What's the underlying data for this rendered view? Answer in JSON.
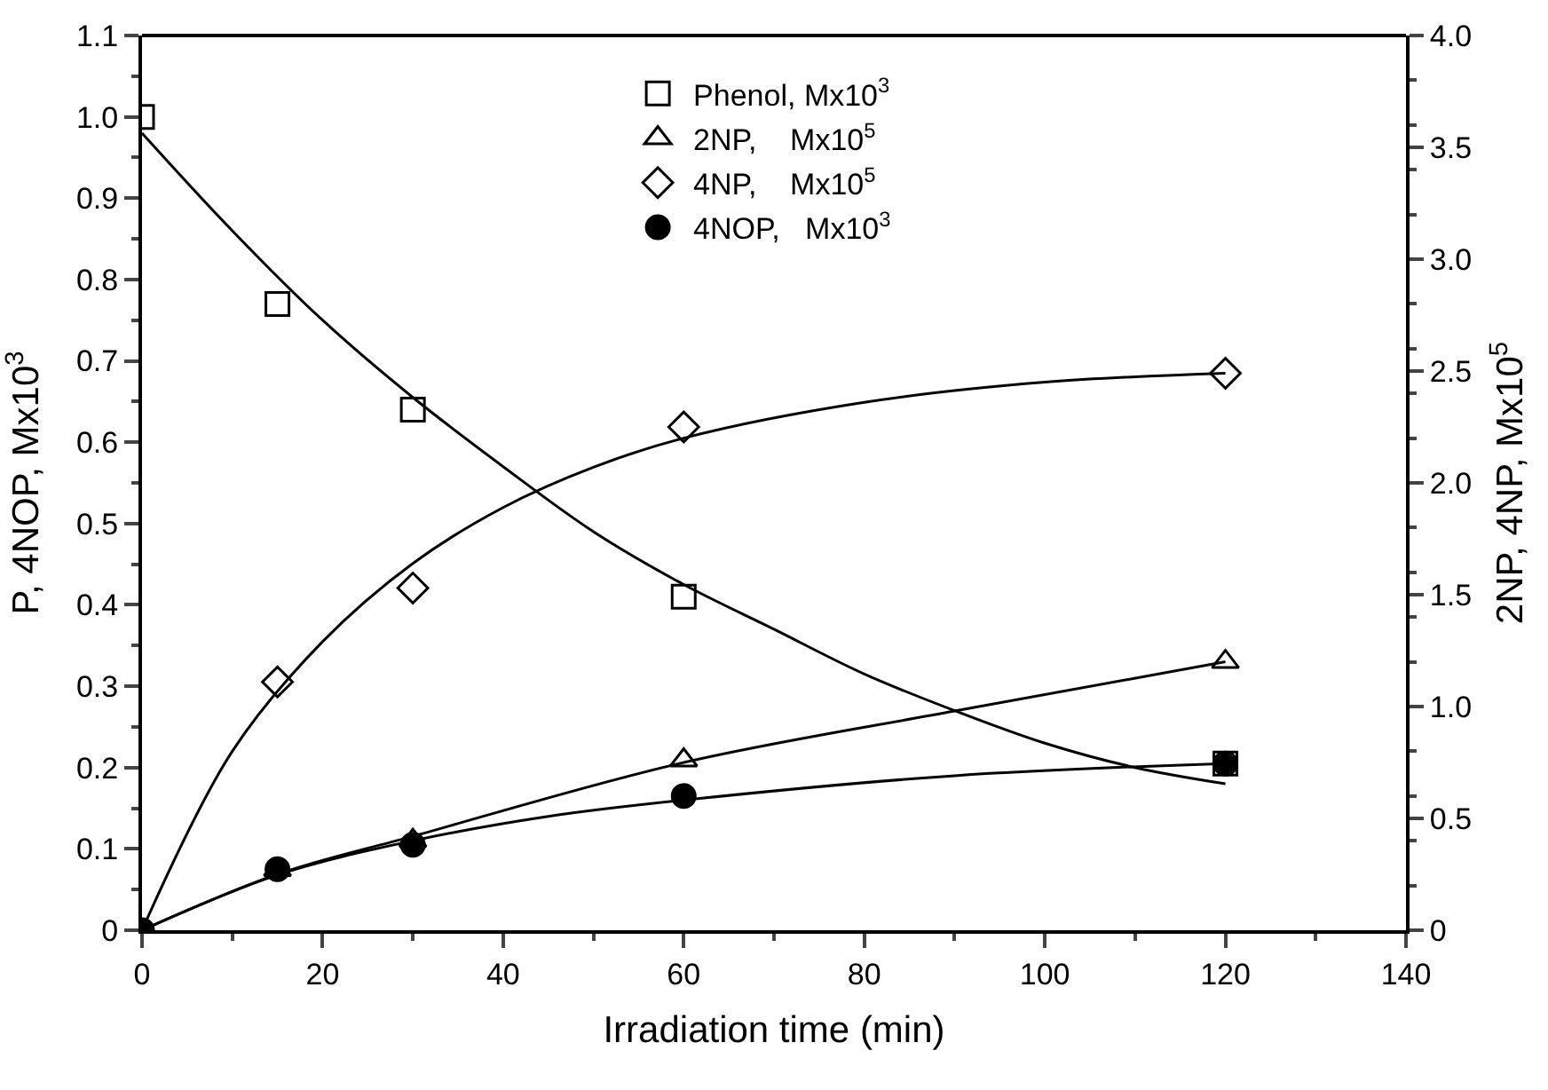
{
  "chart_data": {
    "type": "scatter",
    "xlabel": "Irradiation time (min)",
    "ylabel": "P, 4NOP, Mx10$^{3}$",
    "y2label": "2NP, 4NP, Mx10$^{5}$",
    "xlim": [
      0,
      140
    ],
    "xticks": [
      0,
      20,
      40,
      60,
      80,
      100,
      120,
      140
    ],
    "ylim": [
      0,
      1.1
    ],
    "yticks": [
      {
        "value": 0,
        "label": "0"
      },
      0.1,
      0.2,
      0.3,
      0.4,
      0.5,
      0.6,
      0.7,
      0.8,
      0.9,
      {
        "value": 1.0,
        "label": "1.0"
      },
      1.1
    ],
    "y2lim": [
      0,
      4.0
    ],
    "y2ticks": [
      {
        "value": 0,
        "label": "0"
      },
      0.5,
      {
        "value": 1.0,
        "label": "1.0"
      },
      1.5,
      {
        "value": 2.0,
        "label": "2.0"
      },
      2.5,
      {
        "value": 3.0,
        "label": "3.0"
      },
      3.5,
      {
        "value": 4.0,
        "label": "4.0"
      }
    ],
    "legend": "top",
    "series": [
      {
        "name": "Phenol, Mx10$^{3}$",
        "marker": "square",
        "color": "#000000",
        "x": [
          0,
          15,
          30,
          60,
          120
        ],
        "values": [
          1.0,
          0.77,
          0.64,
          0.41,
          0.205
        ]
      },
      {
        "name": "2NP,    Mx10$^{5}$",
        "marker": "triangle",
        "axis": "y2",
        "color": "#000000",
        "x": [
          15,
          30,
          60,
          120
        ],
        "values": [
          0.27,
          0.4,
          0.76,
          1.2
        ]
      },
      {
        "name": "4NP,    Mx10$^{5}$",
        "marker": "diamond",
        "axis": "y2",
        "color": "#000000",
        "x": [
          15,
          30,
          60,
          120
        ],
        "values": [
          1.11,
          1.53,
          2.25,
          2.49
        ]
      },
      {
        "name": "4NOP,   Mx10$^{3}$",
        "marker": "circle",
        "color": "#000000",
        "x": [
          0,
          15,
          30,
          60,
          120
        ],
        "values": [
          0,
          0.075,
          0.105,
          0.165,
          0.205
        ]
      },
      {
        "type": "line",
        "marker": "none",
        "color": "#000000",
        "x": [
          0,
          10,
          20,
          30,
          40,
          50,
          60,
          70,
          80,
          90,
          100,
          110,
          120
        ],
        "values": [
          0.98,
          0.86,
          0.75,
          0.655,
          0.57,
          0.49,
          0.425,
          0.37,
          0.315,
          0.27,
          0.23,
          0.2,
          0.18
        ]
      },
      {
        "type": "line",
        "marker": "none",
        "axis": "y2",
        "color": "#000000",
        "x": [
          0,
          15,
          30,
          60,
          90,
          120
        ],
        "values": [
          0,
          0.25,
          0.42,
          0.75,
          0.98,
          1.2
        ]
      },
      {
        "type": "line",
        "marker": "none",
        "axis": "y2",
        "color": "#000000",
        "x": [
          0,
          10,
          20,
          30,
          40,
          50,
          60,
          80,
          100,
          120
        ],
        "values": [
          0,
          0.8,
          1.29,
          1.64,
          1.89,
          2.07,
          2.2,
          2.36,
          2.45,
          2.49
        ]
      },
      {
        "type": "line",
        "marker": "none",
        "color": "#000000",
        "x": [
          0,
          15,
          30,
          45,
          60,
          90,
          120
        ],
        "values": [
          0,
          0.068,
          0.11,
          0.14,
          0.16,
          0.19,
          0.205
        ]
      }
    ]
  }
}
